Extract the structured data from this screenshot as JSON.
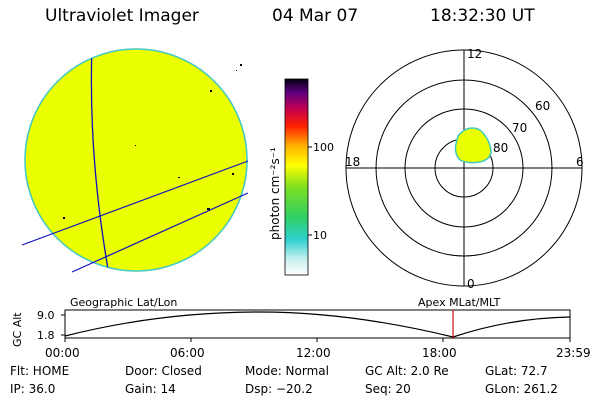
{
  "header": {
    "instrument": "Ultraviolet Imager",
    "date": "04 Mar 07",
    "time": "18:32:30 UT"
  },
  "colors": {
    "image_fill": "#eaff00",
    "image_edge": "#40c8c0",
    "geo_grid": "#1010c0",
    "mlt_grid": "#000000",
    "time_marker": "#d01010"
  },
  "colorbar": {
    "unit_label": "photon cm⁻²s⁻¹",
    "ticks": [
      "100",
      "10"
    ]
  },
  "polar_plot": {
    "mlt_labels": [
      "12",
      "18",
      "6",
      "0"
    ],
    "lat_labels": [
      "60",
      "70",
      "80"
    ]
  },
  "timeline": {
    "left_label": "Geographic Lat/Lon",
    "right_label": "Apex MLat/MLT",
    "axis_label": "GC Alt",
    "y_ticks": [
      "9.0",
      "1.8"
    ],
    "x_ticks": [
      "00:00",
      "06:00",
      "12:00",
      "18:00",
      "23:59"
    ],
    "marker_time": "18:32:30"
  },
  "status": {
    "filter": "Flt: HOME",
    "ip": "IP: 36.0",
    "door": "Door: Closed",
    "gain": "Gain: 14",
    "mode": "Mode: Normal",
    "dsp": "Dsp:  −20.2",
    "gc_alt": "GC Alt: 2.0 Re",
    "seq": "Seq: 20",
    "glat": "GLat:  72.7",
    "glon": "GLon: 261.2"
  }
}
